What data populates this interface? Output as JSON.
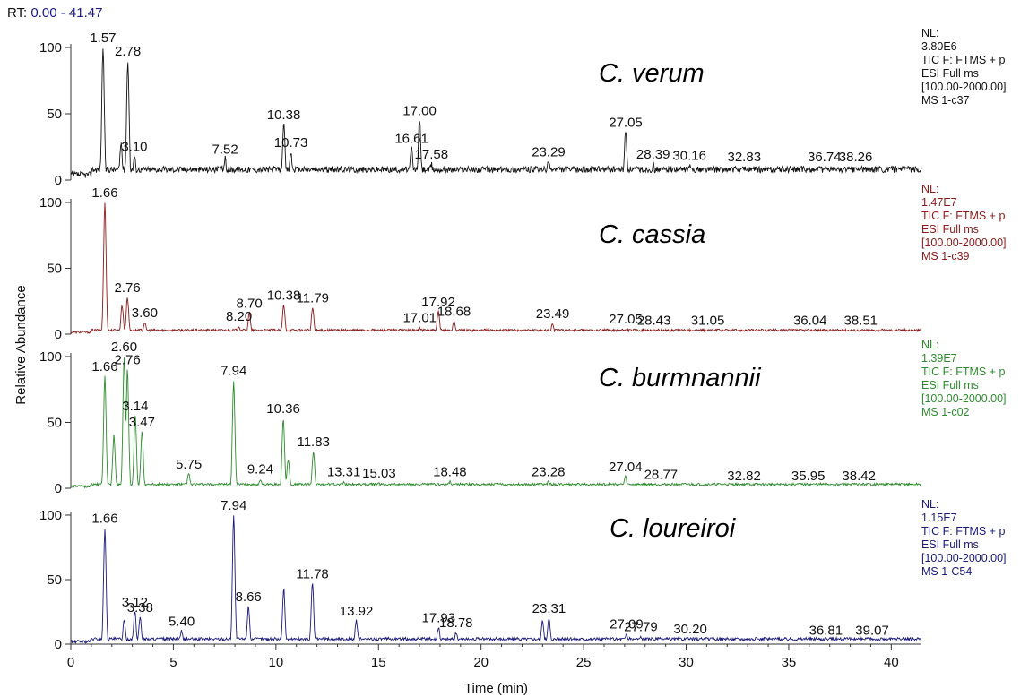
{
  "rt_label": "RT:",
  "rt_range": "0.00 - 41.47",
  "chart_data": {
    "type": "line",
    "xlabel": "Time (min)",
    "ylabel": "Relative Abundance",
    "xlim": [
      0,
      41.47
    ],
    "xticks": [
      0,
      5,
      10,
      15,
      20,
      25,
      30,
      35,
      40
    ],
    "panels": [
      {
        "species": "C. verum",
        "color": "#111111",
        "ylim": [
          0,
          100
        ],
        "yticks": [
          0,
          50,
          100
        ],
        "info": [
          "NL:",
          "3.80E6",
          "TIC F: FTMS + p",
          "ESI Full ms",
          "[100.00-2000.00]",
          "MS 1-c37"
        ],
        "baseline": 8,
        "peaks": [
          [
            1.57,
            100
          ],
          [
            2.78,
            90
          ],
          [
            2.45,
            28
          ],
          [
            3.1,
            18
          ],
          [
            7.52,
            16
          ],
          [
            10.38,
            42
          ],
          [
            10.73,
            21
          ],
          [
            16.61,
            24
          ],
          [
            17.0,
            45
          ],
          [
            17.58,
            12
          ],
          [
            23.29,
            14
          ],
          [
            27.05,
            36
          ],
          [
            28.39,
            12
          ],
          [
            30.16,
            11
          ],
          [
            32.83,
            10
          ],
          [
            36.74,
            10
          ],
          [
            38.26,
            10
          ]
        ],
        "labels": [
          {
            "x": 1.57,
            "y": 100,
            "text": "1.57"
          },
          {
            "x": 2.78,
            "y": 90,
            "text": "2.78"
          },
          {
            "x": 3.1,
            "y": 18,
            "text": "3.10"
          },
          {
            "x": 7.52,
            "y": 16,
            "text": "7.52"
          },
          {
            "x": 10.38,
            "y": 42,
            "text": "10.38"
          },
          {
            "x": 10.73,
            "y": 21,
            "text": "10.73"
          },
          {
            "x": 16.61,
            "y": 24,
            "text": "16.61"
          },
          {
            "x": 17.0,
            "y": 45,
            "text": "17.00"
          },
          {
            "x": 17.58,
            "y": 12,
            "text": "17.58"
          },
          {
            "x": 23.29,
            "y": 14,
            "text": "23.29"
          },
          {
            "x": 27.05,
            "y": 36,
            "text": "27.05"
          },
          {
            "x": 28.39,
            "y": 12,
            "text": "28.39"
          },
          {
            "x": 30.16,
            "y": 11,
            "text": "30.16"
          },
          {
            "x": 32.83,
            "y": 10,
            "text": "32.83"
          },
          {
            "x": 36.74,
            "y": 10,
            "text": "36.74"
          },
          {
            "x": 38.26,
            "y": 10,
            "text": "38.26"
          }
        ]
      },
      {
        "species": "C. cassia",
        "color": "#8b1a1a",
        "ylim": [
          0,
          100
        ],
        "yticks": [
          0,
          50,
          100
        ],
        "info": [
          "NL:",
          "1.47E7",
          "TIC F: FTMS + p",
          "ESI Full ms",
          "[100.00-2000.00]",
          "MS 1-c39"
        ],
        "baseline": 3,
        "peaks": [
          [
            1.66,
            100
          ],
          [
            2.5,
            22
          ],
          [
            2.76,
            28
          ],
          [
            3.6,
            9
          ],
          [
            8.2,
            6
          ],
          [
            8.7,
            16
          ],
          [
            10.38,
            22
          ],
          [
            11.79,
            20
          ],
          [
            17.01,
            5
          ],
          [
            17.92,
            17
          ],
          [
            18.68,
            10
          ],
          [
            23.49,
            8
          ],
          [
            27.05,
            4
          ],
          [
            28.43,
            3
          ],
          [
            31.05,
            3
          ],
          [
            36.04,
            3
          ],
          [
            38.51,
            3
          ]
        ],
        "labels": [
          {
            "x": 1.66,
            "y": 100,
            "text": "1.66"
          },
          {
            "x": 2.76,
            "y": 28,
            "text": "2.76"
          },
          {
            "x": 3.6,
            "y": 9,
            "text": "3.60"
          },
          {
            "x": 8.2,
            "y": 6,
            "text": "8.20"
          },
          {
            "x": 8.7,
            "y": 16,
            "text": "8.70"
          },
          {
            "x": 10.38,
            "y": 22,
            "text": "10.38"
          },
          {
            "x": 11.79,
            "y": 20,
            "text": "11.79"
          },
          {
            "x": 17.01,
            "y": 5,
            "text": "17.01"
          },
          {
            "x": 17.92,
            "y": 17,
            "text": "17.92"
          },
          {
            "x": 18.68,
            "y": 10,
            "text": "18.68"
          },
          {
            "x": 23.49,
            "y": 8,
            "text": "23.49"
          },
          {
            "x": 27.05,
            "y": 4,
            "text": "27.05"
          },
          {
            "x": 28.43,
            "y": 3,
            "text": "28.43"
          },
          {
            "x": 31.05,
            "y": 3,
            "text": "31.05"
          },
          {
            "x": 36.04,
            "y": 3,
            "text": "36.04"
          },
          {
            "x": 38.51,
            "y": 3,
            "text": "38.51"
          }
        ]
      },
      {
        "species": "C. burmnannii",
        "color": "#2e8b2e",
        "ylim": [
          0,
          100
        ],
        "yticks": [
          0,
          50,
          100
        ],
        "info": [
          "NL:",
          "1.39E7",
          "TIC F: FTMS + p",
          "ESI Full ms",
          "[100.00-2000.00]",
          "MS 1-c02"
        ],
        "baseline": 3,
        "peaks": [
          [
            1.66,
            85
          ],
          [
            2.1,
            40
          ],
          [
            2.6,
            100
          ],
          [
            2.76,
            90
          ],
          [
            3.14,
            55
          ],
          [
            3.47,
            43
          ],
          [
            5.75,
            11
          ],
          [
            7.94,
            82
          ],
          [
            9.24,
            7
          ],
          [
            10.36,
            53
          ],
          [
            10.6,
            22
          ],
          [
            11.83,
            28
          ],
          [
            13.31,
            5
          ],
          [
            15.03,
            4
          ],
          [
            18.48,
            5
          ],
          [
            23.28,
            5
          ],
          [
            27.04,
            9
          ],
          [
            28.77,
            3
          ],
          [
            32.82,
            2
          ],
          [
            35.95,
            2
          ],
          [
            38.42,
            2
          ]
        ],
        "labels": [
          {
            "x": 1.66,
            "y": 85,
            "text": "1.66"
          },
          {
            "x": 2.6,
            "y": 100,
            "text": "2.60"
          },
          {
            "x": 2.76,
            "y": 90,
            "text": "2.76"
          },
          {
            "x": 3.14,
            "y": 55,
            "text": "3.14"
          },
          {
            "x": 3.47,
            "y": 43,
            "text": "3.47"
          },
          {
            "x": 5.75,
            "y": 11,
            "text": "5.75"
          },
          {
            "x": 7.94,
            "y": 82,
            "text": "7.94"
          },
          {
            "x": 9.24,
            "y": 7,
            "text": "9.24"
          },
          {
            "x": 10.36,
            "y": 53,
            "text": "10.36"
          },
          {
            "x": 11.83,
            "y": 28,
            "text": "11.83"
          },
          {
            "x": 13.31,
            "y": 5,
            "text": "13.31"
          },
          {
            "x": 15.03,
            "y": 4,
            "text": "15.03"
          },
          {
            "x": 18.48,
            "y": 5,
            "text": "18.48"
          },
          {
            "x": 23.28,
            "y": 5,
            "text": "23.28"
          },
          {
            "x": 27.04,
            "y": 9,
            "text": "27.04"
          },
          {
            "x": 28.77,
            "y": 3,
            "text": "28.77"
          },
          {
            "x": 32.82,
            "y": 2,
            "text": "32.82"
          },
          {
            "x": 35.95,
            "y": 2,
            "text": "35.95"
          },
          {
            "x": 38.42,
            "y": 2,
            "text": "38.42"
          }
        ]
      },
      {
        "species": "C. loureiroi",
        "color": "#1a1a7a",
        "ylim": [
          0,
          100
        ],
        "yticks": [
          0,
          50,
          100
        ],
        "info": [
          "NL:",
          "1.15E7",
          "TIC F: FTMS + p",
          "ESI Full ms",
          "[100.00-2000.00]",
          "MS 1-C54"
        ],
        "baseline": 4,
        "peaks": [
          [
            1.66,
            90
          ],
          [
            2.6,
            18
          ],
          [
            3.12,
            25
          ],
          [
            3.38,
            21
          ],
          [
            5.4,
            10
          ],
          [
            7.94,
            100
          ],
          [
            8.66,
            29
          ],
          [
            10.38,
            43
          ],
          [
            11.78,
            47
          ],
          [
            13.92,
            18
          ],
          [
            17.93,
            13
          ],
          [
            18.78,
            9
          ],
          [
            23.0,
            18
          ],
          [
            23.31,
            20
          ],
          [
            27.09,
            8
          ],
          [
            27.79,
            6
          ],
          [
            30.2,
            4
          ],
          [
            36.81,
            3
          ],
          [
            39.07,
            3
          ]
        ],
        "labels": [
          {
            "x": 1.66,
            "y": 90,
            "text": "1.66"
          },
          {
            "x": 3.12,
            "y": 25,
            "text": "3.12"
          },
          {
            "x": 3.38,
            "y": 21,
            "text": "3.38"
          },
          {
            "x": 5.4,
            "y": 10,
            "text": "5.40"
          },
          {
            "x": 7.94,
            "y": 100,
            "text": "7.94"
          },
          {
            "x": 8.66,
            "y": 29,
            "text": "8.66"
          },
          {
            "x": 11.78,
            "y": 47,
            "text": "11.78"
          },
          {
            "x": 13.92,
            "y": 18,
            "text": "13.92"
          },
          {
            "x": 17.93,
            "y": 13,
            "text": "17.93"
          },
          {
            "x": 18.78,
            "y": 9,
            "text": "18.78"
          },
          {
            "x": 23.31,
            "y": 20,
            "text": "23.31"
          },
          {
            "x": 27.09,
            "y": 8,
            "text": "27.09"
          },
          {
            "x": 27.79,
            "y": 6,
            "text": "27.79"
          },
          {
            "x": 30.2,
            "y": 4,
            "text": "30.20"
          },
          {
            "x": 36.81,
            "y": 3,
            "text": "36.81"
          },
          {
            "x": 39.07,
            "y": 3,
            "text": "39.07"
          }
        ]
      }
    ]
  }
}
